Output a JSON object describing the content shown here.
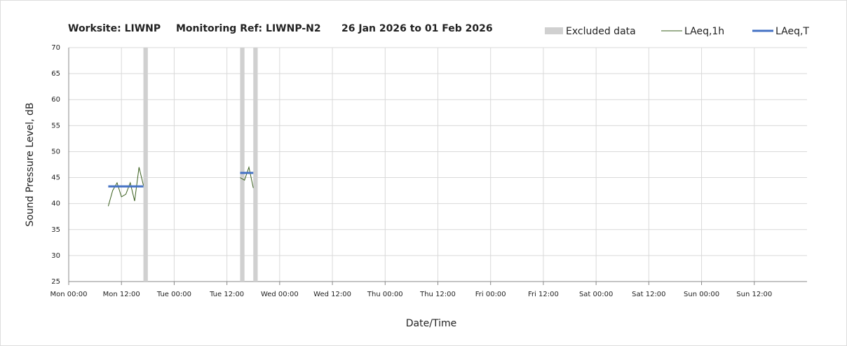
{
  "chart_data": {
    "type": "line",
    "title": "Worksite: LIWNP",
    "subtitle": "Monitoring Ref: LIWNP-N2",
    "period": "26 Jan 2026 to 01 Feb 2026",
    "ylabel": "Sound Pressure Level, dB",
    "xlabel": "Date/Time",
    "xlim": [
      0,
      168
    ],
    "xticks": [
      {
        "value": 0,
        "label": "Mon 00:00"
      },
      {
        "value": 12,
        "label": "Mon 12:00"
      },
      {
        "value": 24,
        "label": "Tue 00:00"
      },
      {
        "value": 36,
        "label": "Tue 12:00"
      },
      {
        "value": 48,
        "label": "Wed 00:00"
      },
      {
        "value": 60,
        "label": "Wed 12:00"
      },
      {
        "value": 72,
        "label": "Thu 00:00"
      },
      {
        "value": 84,
        "label": "Thu 12:00"
      },
      {
        "value": 96,
        "label": "Fri 00:00"
      },
      {
        "value": 108,
        "label": "Fri 12:00"
      },
      {
        "value": 120,
        "label": "Sat 00:00"
      },
      {
        "value": 132,
        "label": "Sat 12:00"
      },
      {
        "value": 144,
        "label": "Sun 00:00"
      },
      {
        "value": 156,
        "label": "Sun 12:00"
      }
    ],
    "ylim": [
      25,
      70
    ],
    "yticks": [
      25,
      30,
      35,
      40,
      45,
      50,
      55,
      60,
      65,
      70
    ],
    "grid": true,
    "excluded": {
      "name": "Excluded data",
      "color": "#d0d0d0",
      "ranges": [
        [
          17,
          18
        ],
        [
          39,
          40
        ],
        [
          42,
          43
        ]
      ]
    },
    "series": [
      {
        "name": "LAeq,1h",
        "color": "#3a5f1e",
        "width": 1,
        "x": [
          9,
          10,
          11,
          12,
          13,
          14,
          15,
          16,
          17,
          null,
          39,
          40,
          41,
          42
        ],
        "values": [
          39.5,
          42.5,
          44,
          41.3,
          41.8,
          44,
          40.5,
          47,
          43.5,
          null,
          45,
          44.5,
          47,
          43
        ]
      },
      {
        "name": "LAeq,T",
        "color": "#4472c4",
        "width": 3,
        "x": [
          9,
          17,
          null,
          39,
          42
        ],
        "values": [
          43.3,
          43.3,
          null,
          45.9,
          45.9
        ]
      }
    ]
  }
}
